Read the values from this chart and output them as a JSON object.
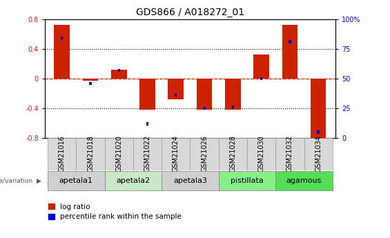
{
  "title": "GDS866 / A018272_01",
  "samples": [
    "GSM21016",
    "GSM21018",
    "GSM21020",
    "GSM21022",
    "GSM21024",
    "GSM21026",
    "GSM21028",
    "GSM21030",
    "GSM21032",
    "GSM21034"
  ],
  "log_ratio": [
    0.72,
    -0.03,
    0.12,
    -0.42,
    -0.28,
    -0.42,
    -0.42,
    0.32,
    0.72,
    -0.8
  ],
  "percentile_rank": [
    84,
    46,
    57,
    12,
    36,
    25,
    26,
    50,
    81,
    5
  ],
  "ylim": [
    -0.8,
    0.8
  ],
  "right_ylim": [
    0,
    100
  ],
  "right_yticks": [
    0,
    25,
    50,
    75,
    100
  ],
  "right_yticklabels": [
    "0",
    "25",
    "50",
    "75",
    "100%"
  ],
  "left_yticks": [
    -0.8,
    -0.4,
    0,
    0.4,
    0.8
  ],
  "dotted_lines": [
    -0.4,
    0.0,
    0.4
  ],
  "bar_color_red": "#cc2200",
  "bar_color_blue": "#0000cc",
  "groups": [
    {
      "name": "apetala1",
      "samples": [
        "GSM21016",
        "GSM21018"
      ],
      "color": "#d0d0d0"
    },
    {
      "name": "apetala2",
      "samples": [
        "GSM21020",
        "GSM21022"
      ],
      "color": "#c8e8c8"
    },
    {
      "name": "apetala3",
      "samples": [
        "GSM21024",
        "GSM21026"
      ],
      "color": "#d0d0d0"
    },
    {
      "name": "pistillata",
      "samples": [
        "GSM21028",
        "GSM21030"
      ],
      "color": "#88ee88"
    },
    {
      "name": "agamous",
      "samples": [
        "GSM21032",
        "GSM21034"
      ],
      "color": "#55dd55"
    }
  ],
  "legend_red": "log ratio",
  "legend_blue": "percentile rank within the sample",
  "genotype_label": "genotype/variation",
  "bar_width": 0.55,
  "title_fontsize": 10,
  "tick_fontsize": 7,
  "group_label_fontsize": 8,
  "legend_fontsize": 7.5
}
